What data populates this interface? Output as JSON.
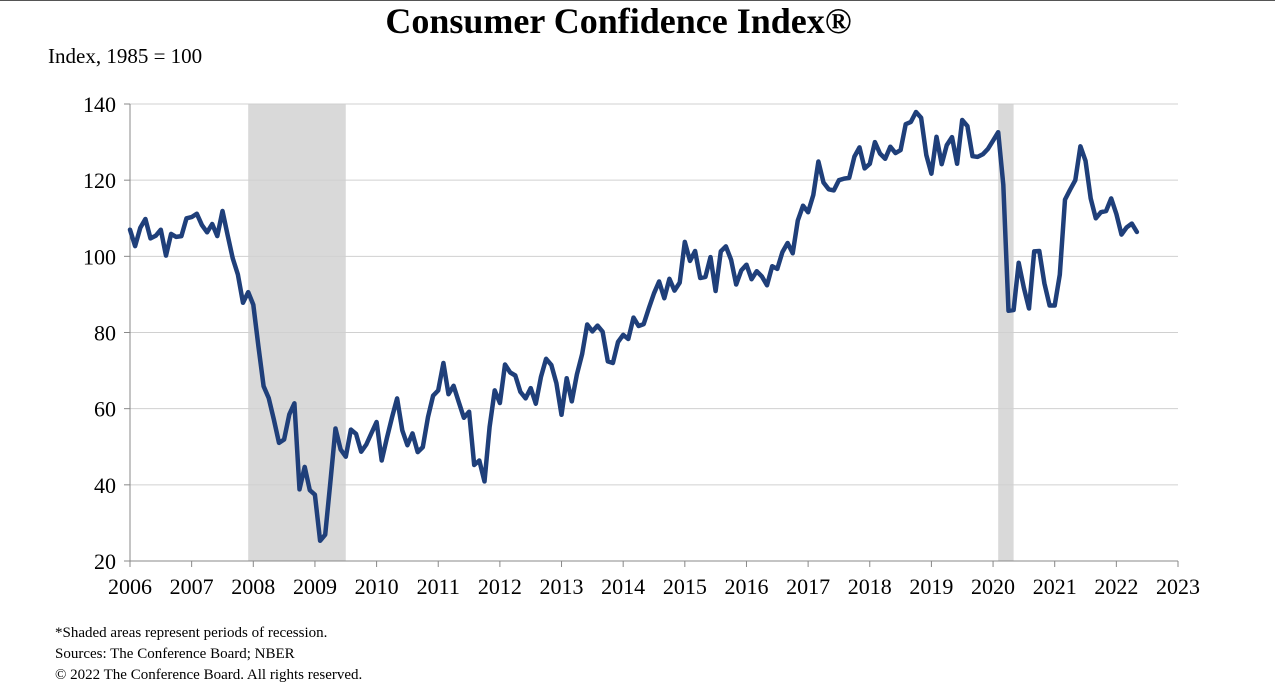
{
  "chart_data": {
    "type": "line",
    "title": "Consumer Confidence Index®",
    "ylabel": "Index, 1985 = 100",
    "xlabel": "",
    "ylim": [
      20,
      140
    ],
    "xlim": [
      2006,
      2023
    ],
    "yticks": [
      20,
      40,
      60,
      80,
      100,
      120,
      140
    ],
    "xticks": [
      2006,
      2007,
      2008,
      2009,
      2010,
      2011,
      2012,
      2013,
      2014,
      2015,
      2016,
      2017,
      2018,
      2019,
      2020,
      2021,
      2022,
      2023
    ],
    "grid": true,
    "recessions": [
      {
        "start": 2007.917,
        "end": 2009.5
      },
      {
        "start": 2020.083,
        "end": 2020.333
      }
    ],
    "series": [
      {
        "name": "Consumer Confidence Index",
        "color": "#1f3f7a",
        "start": 2006.0,
        "step_months": 1,
        "values": [
          107,
          102.7,
          107.5,
          109.8,
          104.7,
          105.4,
          107,
          100.2,
          105.9,
          105.1,
          105.3,
          110,
          110.3,
          111.2,
          108.2,
          106.3,
          108.5,
          105.3,
          111.9,
          105.6,
          99.5,
          95.2,
          87.8,
          90.6,
          87.3,
          76.4,
          65.9,
          62.8,
          57.2,
          51,
          51.9,
          58.5,
          61.4,
          38.8,
          44.7,
          38.6,
          37.4,
          25.3,
          26.9,
          40.8,
          54.8,
          49.3,
          47.4,
          54.5,
          53.4,
          48.7,
          50.6,
          53.6,
          56.5,
          46.4,
          52.3,
          57.7,
          62.7,
          54.3,
          50.4,
          53.5,
          48.6,
          49.9,
          57.8,
          63.4,
          64.8,
          72,
          63.8,
          66,
          61.7,
          57.6,
          59.2,
          45.2,
          46.4,
          40.9,
          55.2,
          64.8,
          61.5,
          71.6,
          69.5,
          68.7,
          64.4,
          62.7,
          65.4,
          61.3,
          68.4,
          73.1,
          71.5,
          66.7,
          58.4,
          68,
          61.9,
          69,
          74.3,
          82.1,
          80.3,
          81.8,
          80.2,
          72.4,
          72,
          77.5,
          79.4,
          78.3,
          83.9,
          81.7,
          82.2,
          86.4,
          90.3,
          93.4,
          89,
          94.1,
          91,
          93.1,
          103.8,
          98.8,
          101.4,
          94.3,
          94.6,
          99.8,
          90.9,
          101.3,
          102.6,
          99.1,
          92.6,
          96.3,
          97.8,
          94,
          96.1,
          94.7,
          92.4,
          97.4,
          96.7,
          101.1,
          103.5,
          100.8,
          109.4,
          113.3,
          111.6,
          116.1,
          124.9,
          119.4,
          117.6,
          117.3,
          120,
          120.4,
          120.6,
          126.2,
          128.6,
          123.1,
          124.3,
          130,
          127,
          125.6,
          128.8,
          127.1,
          127.9,
          134.7,
          135.3,
          137.9,
          136.4,
          126.6,
          121.7,
          131.4,
          124.2,
          129.2,
          131.3,
          124.3,
          135.8,
          134.2,
          126.3,
          126.1,
          126.8,
          128.2,
          130.4,
          132.6,
          118.8,
          85.7,
          85.9,
          98.3,
          91.7,
          86.3,
          101.3,
          101.4,
          92.9,
          87.1,
          87.1,
          95.2,
          114.9,
          117.5,
          120,
          128.9,
          125.1,
          115.2,
          110,
          111.6,
          111.9,
          115.2,
          111.1,
          105.7,
          107.6,
          108.6,
          106.4
        ]
      }
    ],
    "footnotes": {
      "shading": "*Shaded areas represent periods of recession.",
      "sources": "Sources: The Conference Board; NBER",
      "copyright": "© 2022 The Conference Board. All rights reserved."
    }
  }
}
